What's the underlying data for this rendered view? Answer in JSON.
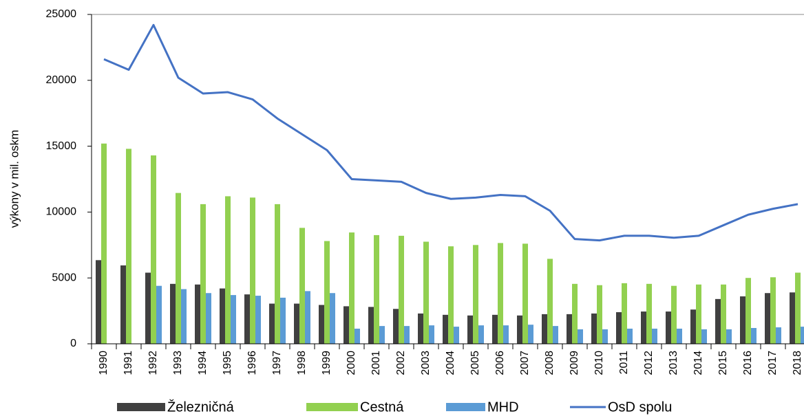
{
  "chart_data": {
    "type": "bar",
    "y_label": "výkony v mil. oskm",
    "categories": [
      "1990",
      "1991",
      "1992",
      "1993",
      "1994",
      "1995",
      "1996",
      "1997",
      "1998",
      "1999",
      "2000",
      "2001",
      "2002",
      "2003",
      "2004",
      "2005",
      "2006",
      "2007",
      "2008",
      "2009",
      "2010",
      "2011",
      "2012",
      "2013",
      "2014",
      "2015",
      "2016",
      "2017",
      "2018"
    ],
    "series": [
      {
        "name": "Železničná",
        "color": "#404040",
        "type": "bar",
        "values": [
          6350,
          5950,
          5400,
          4550,
          4500,
          4200,
          3750,
          3050,
          3050,
          2950,
          2850,
          2800,
          2650,
          2300,
          2200,
          2150,
          2200,
          2150,
          2250,
          2250,
          2300,
          2400,
          2450,
          2450,
          2600,
          3400,
          3600,
          3850,
          3900
        ]
      },
      {
        "name": "Cestná",
        "color": "#92d050",
        "type": "bar",
        "values": [
          15200,
          14800,
          14300,
          11450,
          10600,
          11200,
          11100,
          10600,
          8800,
          7800,
          8450,
          8250,
          8200,
          7750,
          7400,
          7500,
          7650,
          7600,
          6450,
          4550,
          4450,
          4600,
          4550,
          4400,
          4500,
          4500,
          5000,
          5050,
          5400
        ]
      },
      {
        "name": "MHD",
        "color": "#5b9bd5",
        "type": "bar",
        "values": [
          null,
          null,
          4400,
          4150,
          3850,
          3700,
          3650,
          3500,
          4000,
          3850,
          1150,
          1350,
          1350,
          1400,
          1300,
          1400,
          1400,
          1450,
          1350,
          1100,
          1100,
          1150,
          1150,
          1150,
          1100,
          1100,
          1200,
          1250,
          1300
        ]
      },
      {
        "name": "OsD spolu",
        "color": "#4472c4",
        "type": "line",
        "values": [
          21600,
          20800,
          24200,
          20200,
          19000,
          19100,
          18550,
          17100,
          15900,
          14700,
          12500,
          12400,
          12300,
          11450,
          11000,
          11100,
          11300,
          11200,
          10100,
          7950,
          7850,
          8200,
          8200,
          8050,
          8200,
          9000,
          9800,
          10250,
          10600
        ]
      }
    ],
    "ylim": [
      0,
      25000
    ],
    "yticks": [
      0,
      5000,
      10000,
      15000,
      20000,
      25000
    ],
    "grid": false
  }
}
